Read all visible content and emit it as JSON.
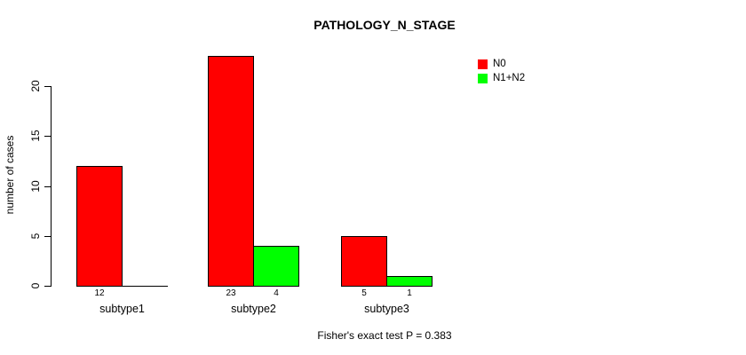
{
  "title": "PATHOLOGY_N_STAGE",
  "footer": "Fisher's exact test P = 0.383",
  "colors": {
    "n0": "#FF0000",
    "n1n2": "#00FF00",
    "axis": "#000000",
    "text": "#000000",
    "background": "#FFFFFF"
  },
  "legend": [
    {
      "label": "N0",
      "color": "#FF0000"
    },
    {
      "label": "N1+N2",
      "color": "#00FF00"
    }
  ],
  "chart_data": {
    "type": "bar",
    "title": "PATHOLOGY_N_STAGE",
    "xlabel": "",
    "ylabel": "number of cases",
    "categories": [
      "subtype1",
      "subtype2",
      "subtype3"
    ],
    "series": [
      {
        "name": "N0",
        "color": "#FF0000",
        "values": [
          12,
          23,
          5
        ],
        "value_labels": [
          "12",
          "23",
          "5"
        ]
      },
      {
        "name": "N1+N2",
        "color": "#00FF00",
        "values": [
          0,
          4,
          1
        ],
        "value_labels": [
          "",
          "4",
          "1"
        ]
      }
    ],
    "ylim": [
      0,
      20
    ],
    "yticks": [
      0,
      5,
      10,
      15,
      20
    ],
    "ytick_labels": [
      "0",
      "5",
      "10",
      "15",
      "20"
    ],
    "grid": false,
    "legend_position": "top-right",
    "annotation": "Fisher's exact test P = 0.383"
  }
}
